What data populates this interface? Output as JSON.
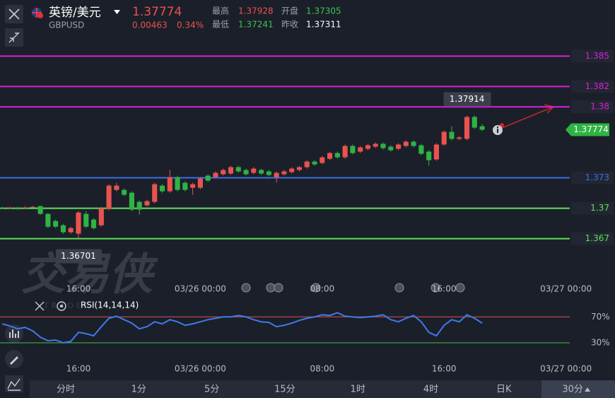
{
  "header": {
    "name": "英镑/美元",
    "symbol": "GBPUSD",
    "price": "1.37774",
    "change": "0.00463",
    "change_pct": "0.34%",
    "stats": [
      {
        "label": "最高",
        "value": "1.37928"
      },
      {
        "label": "开盘",
        "value": "1.37305"
      },
      {
        "label": "最低",
        "value": "1.37241"
      },
      {
        "label": "昨收",
        "value": "1.37311"
      }
    ]
  },
  "watermark": {
    "brand": "交易侠",
    "sub": "TRADER"
  },
  "chart_data": [
    {
      "type": "candlestick",
      "up_color": "#e8534f",
      "down_color": "#2fb344",
      "xlim": [
        -0.3,
        74.5
      ],
      "ylim": [
        1.363,
        1.386
      ],
      "xticks": [
        {
          "value": 10,
          "label": "16:00"
        },
        {
          "value": 26,
          "label": "03/26 00:00"
        },
        {
          "value": 42,
          "label": "08:00"
        },
        {
          "value": 58,
          "label": "16:00"
        },
        {
          "value": 74,
          "label": "03/27 00:00"
        }
      ],
      "open": [
        1.37007,
        1.37,
        1.37007,
        1.37,
        1.37007,
        1.37021,
        1.36944,
        1.36874,
        1.36832,
        1.36763,
        1.36749,
        1.36944,
        1.36888,
        1.36832,
        1.36993,
        1.37181,
        1.37181,
        1.37153,
        1.37063,
        1.37028,
        1.37063,
        1.37223,
        1.37167,
        1.37307,
        1.37251,
        1.37202,
        1.37202,
        1.37321,
        1.37307,
        1.37335,
        1.37342,
        1.37405,
        1.37377,
        1.37349,
        1.37377,
        1.37363,
        1.37307,
        1.37335,
        1.37356,
        1.37377,
        1.37405,
        1.3746,
        1.37446,
        1.37488,
        1.37544,
        1.37502,
        1.37614,
        1.37558,
        1.37586,
        1.37607,
        1.37635,
        1.37607,
        1.37586,
        1.37614,
        1.37656,
        1.37621,
        1.37558,
        1.37481,
        1.37628,
        1.37753,
        1.37684,
        1.37684,
        1.379,
        1.37809
      ],
      "high": [
        1.37014,
        1.37014,
        1.37014,
        1.37021,
        1.37021,
        1.37028,
        1.36951,
        1.36888,
        1.36846,
        1.36818,
        1.36972,
        1.36972,
        1.36902,
        1.37014,
        1.37237,
        1.37251,
        1.37195,
        1.37167,
        1.37077,
        1.37084,
        1.37251,
        1.37237,
        1.37377,
        1.37321,
        1.37265,
        1.37251,
        1.37307,
        1.37335,
        1.37363,
        1.37391,
        1.37419,
        1.37419,
        1.37391,
        1.37405,
        1.37391,
        1.37377,
        1.37363,
        1.37377,
        1.37405,
        1.37419,
        1.37474,
        1.37474,
        1.37516,
        1.37558,
        1.37558,
        1.37628,
        1.37628,
        1.37614,
        1.37635,
        1.37649,
        1.37649,
        1.37621,
        1.37642,
        1.3767,
        1.3767,
        1.37635,
        1.37572,
        1.37642,
        1.37767,
        1.3781,
        1.37712,
        1.37914,
        1.37914,
        1.3783
      ],
      "low": [
        1.36993,
        1.36993,
        1.36986,
        1.36993,
        1.37,
        1.36937,
        1.36804,
        1.36804,
        1.36749,
        1.36749,
        1.36701,
        1.36804,
        1.3679,
        1.36818,
        1.36979,
        1.37167,
        1.37119,
        1.36972,
        1.36937,
        1.37014,
        1.37049,
        1.37153,
        1.37153,
        1.37167,
        1.37167,
        1.37133,
        1.37188,
        1.37258,
        1.37293,
        1.37321,
        1.37328,
        1.37349,
        1.37321,
        1.37335,
        1.37328,
        1.37314,
        1.37251,
        1.37321,
        1.37342,
        1.37363,
        1.37391,
        1.37419,
        1.37432,
        1.37474,
        1.37488,
        1.37488,
        1.3753,
        1.37544,
        1.37572,
        1.37593,
        1.37579,
        1.37558,
        1.37572,
        1.376,
        1.376,
        1.37523,
        1.37419,
        1.37467,
        1.37614,
        1.3767,
        1.3767,
        1.3767,
        1.37781,
        1.3776
      ],
      "close": [
        1.37,
        1.37007,
        1.37,
        1.37007,
        1.37014,
        1.36944,
        1.36818,
        1.36818,
        1.36763,
        1.36804,
        1.36958,
        1.36818,
        1.36804,
        1.37,
        1.37223,
        1.37223,
        1.37133,
        1.36986,
        1.36986,
        1.3707,
        1.37237,
        1.37167,
        1.37307,
        1.37181,
        1.37181,
        1.37237,
        1.37293,
        1.37272,
        1.37349,
        1.37377,
        1.37405,
        1.37363,
        1.37335,
        1.37391,
        1.37342,
        1.37328,
        1.37349,
        1.37363,
        1.37391,
        1.37405,
        1.3746,
        1.37432,
        1.37502,
        1.37544,
        1.37502,
        1.37614,
        1.37544,
        1.376,
        1.37621,
        1.37635,
        1.37593,
        1.37572,
        1.37628,
        1.37656,
        1.37614,
        1.37537,
        1.37474,
        1.37628,
        1.37753,
        1.37684,
        1.37698,
        1.379,
        1.37795,
        1.37774
      ],
      "levels": [
        {
          "value": 1.385,
          "color": "#d91fd9"
        },
        {
          "value": 1.382,
          "color": "#d91fd9"
        },
        {
          "value": 1.38,
          "color": "#d91fd9"
        },
        {
          "value": 1.373,
          "color": "#3b6fe6"
        },
        {
          "value": 1.37,
          "color": "#5ee05a"
        },
        {
          "value": 1.367,
          "color": "#5ee05a"
        }
      ],
      "max_label": 1.37914,
      "min_label": 1.36701,
      "last_price": 1.37774,
      "last_color": "#2fb344"
    },
    {
      "type": "line",
      "title": "RSI(14,14,14)",
      "color": "#3d7be8",
      "xlim": [
        -0.3,
        74.5
      ],
      "ylim": [
        19,
        79
      ],
      "xticks": [
        {
          "value": 10,
          "label": "16:00"
        },
        {
          "value": 26,
          "label": "03/26 00:00"
        },
        {
          "value": 42,
          "label": "08:00"
        },
        {
          "value": 58,
          "label": "16:00"
        },
        {
          "value": 74,
          "label": "03/27 00:00"
        }
      ],
      "yticks": [
        {
          "value": 70,
          "label": "70%"
        },
        {
          "value": 30,
          "label": "30%"
        }
      ],
      "ytick_colors": [
        "#b8474a",
        "#3fae49"
      ],
      "values": [
        59.2,
        55.9,
        51.6,
        53.8,
        48.4,
        38.6,
        33.2,
        34.3,
        30.0,
        32.2,
        46.2,
        44.1,
        40.8,
        54.9,
        67.8,
        71.1,
        65.7,
        60.3,
        51.6,
        54.9,
        62.4,
        59.2,
        65.7,
        62.4,
        57.0,
        59.2,
        62.4,
        65.7,
        67.8,
        70.0,
        70.0,
        72.2,
        70.0,
        65.7,
        62.4,
        61.4,
        54.9,
        57.0,
        60.3,
        64.6,
        67.8,
        70.0,
        73.2,
        72.2,
        76.5,
        71.1,
        70.0,
        68.9,
        70.0,
        71.1,
        73.2,
        65.7,
        62.4,
        67.8,
        72.2,
        62.4,
        46.2,
        40.8,
        57.0,
        65.7,
        62.4,
        73.2,
        67.8,
        60.3
      ]
    }
  ],
  "timeframes": {
    "items": [
      "分时",
      "1分",
      "5分",
      "15分",
      "1时",
      "4时",
      "日K",
      "30分"
    ],
    "selected": 7
  }
}
